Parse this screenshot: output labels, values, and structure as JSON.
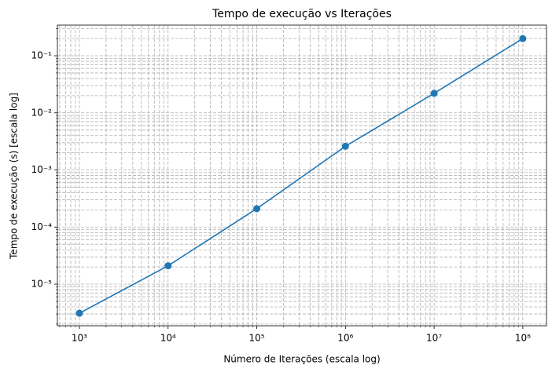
{
  "chart_data": {
    "type": "line",
    "title": "Tempo de execução vs Iterações",
    "xlabel": "Número de Iterações (escala log)",
    "ylabel": "Tempo de execução (s) [escala log]",
    "x": [
      1000,
      10000,
      100000,
      1000000,
      10000000,
      100000000
    ],
    "values": [
      3.1e-06,
      2.1e-05,
      0.00021,
      0.0026,
      0.022,
      0.2
    ],
    "color": "#1f77b4",
    "xscale": "log",
    "yscale": "log",
    "grid": true,
    "minor_grid": true,
    "xlim": [
      565,
      185000000
    ],
    "ylim": [
      1.87e-06,
      0.344
    ],
    "xticks": [
      {
        "value": 1000,
        "label": "10³"
      },
      {
        "value": 10000,
        "label": "10⁴"
      },
      {
        "value": 100000,
        "label": "10⁵"
      },
      {
        "value": 1000000,
        "label": "10⁶"
      },
      {
        "value": 10000000,
        "label": "10⁷"
      },
      {
        "value": 100000000,
        "label": "10⁸"
      }
    ],
    "yticks": [
      {
        "value": 1e-05,
        "label": "10⁻⁵"
      },
      {
        "value": 0.0001,
        "label": "10⁻⁴"
      },
      {
        "value": 0.001,
        "label": "10⁻³"
      },
      {
        "value": 0.01,
        "label": "10⁻²"
      },
      {
        "value": 0.1,
        "label": "10⁻¹"
      }
    ]
  }
}
